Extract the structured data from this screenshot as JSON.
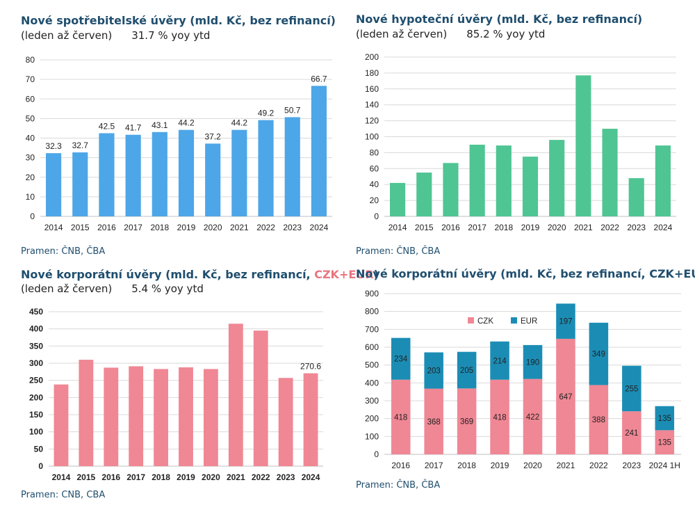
{
  "panels": [
    {
      "title": "Nové spotřebitelské úvěry (mld. Kč, bez refinancí)",
      "subtitle": "(leden až červen)",
      "yoy": "31.7 % yoy ytd",
      "source": "Pramen: ČNB, ČBA"
    },
    {
      "title": "Nové hypoteční úvěry (mld. Kč, bez refinancí)",
      "subtitle": "(leden až červen)",
      "yoy": "85.2 % yoy ytd",
      "source": "Pramen: ČNB, ČBA"
    },
    {
      "title": "Nové korporátní úvěry (mld. Kč, bez refinancí, ",
      "title_highlight": "CZK+EUR",
      "title_end": ")",
      "subtitle": "(leden až červen)",
      "yoy": "5.4 % yoy ytd",
      "source": "Pramen: CNB, CBA"
    },
    {
      "title": "Nové korporátní úvěry (mld. Kč, bez refinancí, CZK+EUR)",
      "source": "Pramen: ČNB, ČBA"
    }
  ],
  "colors": {
    "blue": "#4da6e8",
    "green": "#4fc593",
    "pink": "#f08794",
    "teal": "#1b8db5"
  },
  "chart_data": [
    {
      "type": "bar",
      "categories": [
        "2014",
        "2015",
        "2016",
        "2017",
        "2018",
        "2019",
        "2020",
        "2021",
        "2022",
        "2023",
        "2024"
      ],
      "values": [
        32.3,
        32.7,
        42.5,
        41.7,
        43.1,
        44.2,
        37.2,
        44.2,
        49.2,
        50.7,
        66.7
      ],
      "labels": [
        "32.3",
        "32.7",
        "42.5",
        "41.7",
        "43.1",
        "44.2",
        "37.2",
        "44.2",
        "49.2",
        "50.7",
        "66.7"
      ],
      "ylim": [
        0,
        80
      ],
      "yticks": [
        0,
        10,
        20,
        30,
        40,
        50,
        60,
        70,
        80
      ],
      "grid": true,
      "color": "#4da6e8"
    },
    {
      "type": "bar",
      "categories": [
        "2014",
        "2015",
        "2016",
        "2017",
        "2018",
        "2019",
        "2020",
        "2021",
        "2022",
        "2023",
        "2024"
      ],
      "values": [
        42,
        55,
        67,
        90,
        89,
        75,
        96,
        177,
        110,
        48,
        89
      ],
      "labels": [],
      "ylim": [
        0,
        200
      ],
      "yticks": [
        0,
        20,
        40,
        60,
        80,
        100,
        120,
        140,
        160,
        180,
        200
      ],
      "grid": true,
      "color": "#4fc593"
    },
    {
      "type": "bar",
      "categories": [
        "2014",
        "2015",
        "2016",
        "2017",
        "2018",
        "2019",
        "2020",
        "2021",
        "2022",
        "2023",
        "2024"
      ],
      "values": [
        238,
        310,
        287,
        291,
        283,
        288,
        283,
        415,
        395,
        257,
        270.6
      ],
      "labels": [
        "",
        "",
        "",
        "",
        "",
        "",
        "",
        "",
        "",
        "",
        "270.6"
      ],
      "ylim": [
        0,
        450
      ],
      "yticks": [
        0,
        50,
        100,
        150,
        200,
        250,
        300,
        350,
        400,
        450
      ],
      "grid": true,
      "color": "#f08794",
      "bold_ticks": true
    },
    {
      "type": "stacked_bar",
      "categories": [
        "2016",
        "2017",
        "2018",
        "2019",
        "2020",
        "2021",
        "2022",
        "2023",
        "2024 1H"
      ],
      "series": [
        {
          "name": "CZK",
          "values": [
            418,
            368,
            369,
            418,
            422,
            647,
            388,
            241,
            135
          ],
          "color": "#f08794"
        },
        {
          "name": "EUR",
          "values": [
            234,
            203,
            205,
            214,
            190,
            197,
            349,
            255,
            135
          ],
          "color": "#1b8db5"
        }
      ],
      "ylim": [
        0,
        900
      ],
      "yticks": [
        0,
        100,
        200,
        300,
        400,
        500,
        600,
        700,
        800,
        900
      ],
      "grid": true,
      "legend": "top-left"
    }
  ]
}
